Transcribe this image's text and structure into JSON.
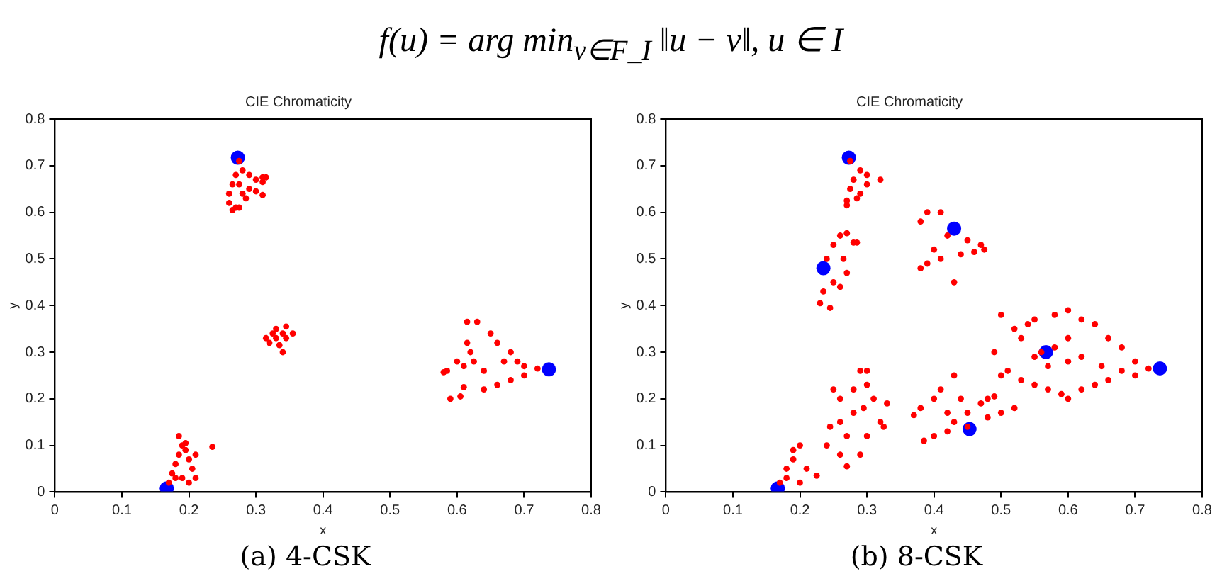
{
  "chart_data": [
    {
      "type": "scatter",
      "title": "CIE Chromaticity",
      "xlabel": "x",
      "ylabel": "y",
      "xlim": [
        0,
        0.8
      ],
      "ylim": [
        0,
        0.8
      ],
      "xticks": [
        0,
        0.1,
        0.2,
        0.3,
        0.4,
        0.5,
        0.6,
        0.7,
        0.8
      ],
      "yticks": [
        0,
        0.1,
        0.2,
        0.3,
        0.4,
        0.5,
        0.6,
        0.7,
        0.8
      ],
      "grid": false,
      "legend": false,
      "marker": "circle",
      "annotations": [
        "f(u) = arg min$_{v∈F_I}$ ‖u − v‖,   u ∈ I",
        "(a) 4-CSK"
      ],
      "series": [
        {
          "color": "#ff0000",
          "x": [
            0.275,
            0.28,
            0.29,
            0.3,
            0.31,
            0.315,
            0.31,
            0.27,
            0.265,
            0.26,
            0.26,
            0.265,
            0.27,
            0.275,
            0.28,
            0.29,
            0.3,
            0.285,
            0.31,
            0.275,
            0.33,
            0.32,
            0.34,
            0.345,
            0.325,
            0.335,
            0.34,
            0.355,
            0.315,
            0.33,
            0.345,
            0.72,
            0.7,
            0.7,
            0.68,
            0.68,
            0.66,
            0.66,
            0.65,
            0.64,
            0.63,
            0.615,
            0.62,
            0.61,
            0.6,
            0.585,
            0.58,
            0.59,
            0.605,
            0.61,
            0.625,
            0.64,
            0.67,
            0.69,
            0.615,
            0.17,
            0.175,
            0.18,
            0.185,
            0.19,
            0.185,
            0.195,
            0.2,
            0.205,
            0.21,
            0.2,
            0.19,
            0.21,
            0.235,
            0.195,
            0.18
          ],
          "values": [
            0.71,
            0.69,
            0.68,
            0.67,
            0.675,
            0.675,
            0.665,
            0.68,
            0.66,
            0.64,
            0.62,
            0.605,
            0.61,
            0.61,
            0.64,
            0.65,
            0.645,
            0.63,
            0.637,
            0.66,
            0.33,
            0.32,
            0.34,
            0.33,
            0.34,
            0.315,
            0.3,
            0.34,
            0.33,
            0.35,
            0.355,
            0.265,
            0.27,
            0.25,
            0.3,
            0.24,
            0.32,
            0.23,
            0.34,
            0.22,
            0.365,
            0.365,
            0.3,
            0.27,
            0.28,
            0.26,
            0.257,
            0.2,
            0.205,
            0.225,
            0.28,
            0.26,
            0.28,
            0.28,
            0.32,
            0.02,
            0.04,
            0.06,
            0.08,
            0.1,
            0.12,
            0.09,
            0.07,
            0.05,
            0.03,
            0.02,
            0.03,
            0.08,
            0.097,
            0.105,
            0.03
          ]
        },
        {
          "color": "#0000ff",
          "x": [
            0.167,
            0.273,
            0.737
          ],
          "values": [
            0.008,
            0.717,
            0.263
          ]
        }
      ]
    },
    {
      "type": "scatter",
      "title": "CIE Chromaticity",
      "xlabel": "x",
      "ylabel": "y",
      "xlim": [
        0,
        0.8
      ],
      "ylim": [
        0,
        0.8
      ],
      "xticks": [
        0,
        0.1,
        0.2,
        0.3,
        0.4,
        0.5,
        0.6,
        0.7,
        0.8
      ],
      "yticks": [
        0,
        0.1,
        0.2,
        0.3,
        0.4,
        0.5,
        0.6,
        0.7,
        0.8
      ],
      "grid": false,
      "legend": false,
      "marker": "circle",
      "annotations": [
        "(b) 8-CSK"
      ],
      "series": [
        {
          "color": "#ff0000",
          "x": [
            0.275,
            0.29,
            0.3,
            0.32,
            0.28,
            0.275,
            0.27,
            0.27,
            0.285,
            0.29,
            0.3,
            0.24,
            0.25,
            0.26,
            0.27,
            0.25,
            0.235,
            0.23,
            0.245,
            0.26,
            0.27,
            0.28,
            0.285,
            0.265,
            0.41,
            0.39,
            0.38,
            0.45,
            0.47,
            0.475,
            0.42,
            0.4,
            0.39,
            0.38,
            0.41,
            0.43,
            0.44,
            0.46,
            0.26,
            0.28,
            0.3,
            0.29,
            0.25,
            0.26,
            0.27,
            0.27,
            0.29,
            0.3,
            0.32,
            0.33,
            0.325,
            0.24,
            0.245,
            0.28,
            0.31,
            0.26,
            0.3,
            0.295,
            0.17,
            0.18,
            0.19,
            0.2,
            0.19,
            0.21,
            0.225,
            0.2,
            0.18,
            0.385,
            0.4,
            0.42,
            0.45,
            0.48,
            0.5,
            0.52,
            0.37,
            0.38,
            0.4,
            0.41,
            0.43,
            0.44,
            0.45,
            0.42,
            0.47,
            0.43,
            0.48,
            0.49,
            0.72,
            0.7,
            0.68,
            0.66,
            0.64,
            0.62,
            0.66,
            0.64,
            0.62,
            0.6,
            0.59,
            0.6,
            0.58,
            0.55,
            0.54,
            0.52,
            0.5,
            0.49,
            0.5,
            0.51,
            0.53,
            0.55,
            0.56,
            0.57,
            0.58,
            0.6,
            0.62,
            0.65,
            0.68,
            0.55,
            0.57,
            0.53,
            0.6,
            0.7
          ],
          "values": [
            0.71,
            0.69,
            0.68,
            0.67,
            0.67,
            0.65,
            0.625,
            0.615,
            0.63,
            0.64,
            0.66,
            0.5,
            0.53,
            0.55,
            0.555,
            0.45,
            0.43,
            0.405,
            0.395,
            0.44,
            0.47,
            0.535,
            0.535,
            0.5,
            0.6,
            0.6,
            0.58,
            0.54,
            0.53,
            0.52,
            0.55,
            0.52,
            0.49,
            0.48,
            0.5,
            0.45,
            0.51,
            0.515,
            0.2,
            0.22,
            0.26,
            0.26,
            0.22,
            0.15,
            0.12,
            0.055,
            0.08,
            0.12,
            0.15,
            0.19,
            0.14,
            0.1,
            0.14,
            0.17,
            0.2,
            0.08,
            0.23,
            0.18,
            0.02,
            0.05,
            0.07,
            0.1,
            0.09,
            0.05,
            0.035,
            0.02,
            0.03,
            0.11,
            0.12,
            0.13,
            0.14,
            0.16,
            0.17,
            0.18,
            0.165,
            0.18,
            0.2,
            0.22,
            0.25,
            0.2,
            0.17,
            0.17,
            0.19,
            0.15,
            0.2,
            0.205,
            0.265,
            0.28,
            0.31,
            0.33,
            0.36,
            0.37,
            0.24,
            0.23,
            0.22,
            0.2,
            0.21,
            0.39,
            0.38,
            0.37,
            0.36,
            0.35,
            0.38,
            0.3,
            0.25,
            0.26,
            0.24,
            0.29,
            0.3,
            0.27,
            0.31,
            0.28,
            0.29,
            0.27,
            0.26,
            0.23,
            0.22,
            0.33,
            0.33,
            0.25
          ]
        },
        {
          "color": "#0000ff",
          "x": [
            0.167,
            0.273,
            0.235,
            0.43,
            0.737,
            0.453,
            0.567
          ],
          "values": [
            0.008,
            0.717,
            0.48,
            0.565,
            0.265,
            0.135,
            0.3
          ]
        }
      ]
    }
  ]
}
